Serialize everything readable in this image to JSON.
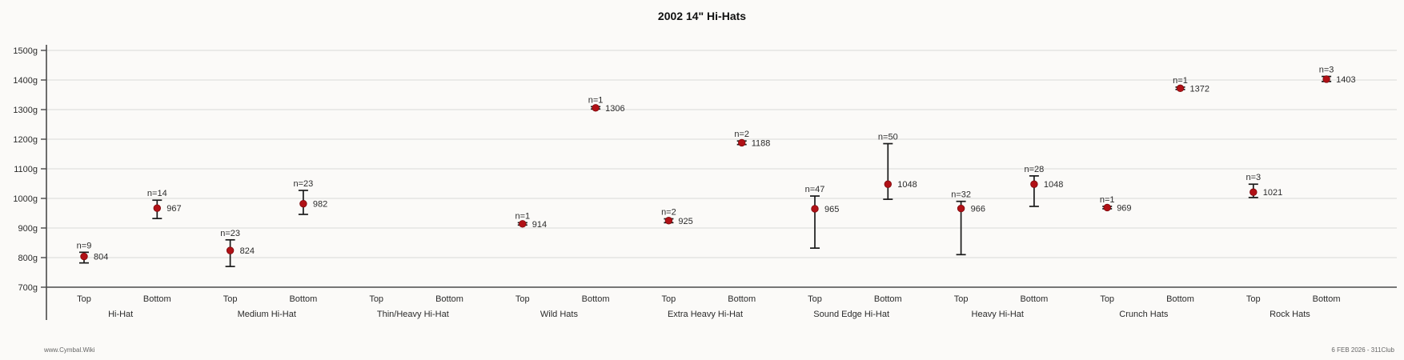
{
  "chart_data": {
    "type": "scatter",
    "title": "2002 14\" Hi-Hats",
    "xlabel": "",
    "ylabel": "",
    "unit": "g",
    "ylim": [
      700,
      1500
    ],
    "grid": true,
    "yticks": [
      {
        "value": 1500,
        "label": "1500g"
      },
      {
        "value": 1400,
        "label": "1400g"
      },
      {
        "value": 1300,
        "label": "1300g"
      },
      {
        "value": 1200,
        "label": "1200g"
      },
      {
        "value": 1100,
        "label": "1100g"
      },
      {
        "value": 1000,
        "label": "1000g"
      },
      {
        "value": 900,
        "label": "900g"
      },
      {
        "value": 800,
        "label": "800g"
      },
      {
        "value": 700,
        "label": "700g"
      }
    ],
    "sublabels": [
      "Top",
      "Bottom"
    ],
    "groups": [
      {
        "name": "Hi-Hat",
        "points": [
          {
            "sub": "Top",
            "n": 9,
            "n_label": "n=9",
            "value": 804,
            "value_label": "804",
            "lo": 782,
            "hi": 818
          },
          {
            "sub": "Bottom",
            "n": 14,
            "n_label": "n=14",
            "value": 967,
            "value_label": "967",
            "lo": 932,
            "hi": 994
          }
        ]
      },
      {
        "name": "Medium Hi-Hat",
        "points": [
          {
            "sub": "Top",
            "n": 23,
            "n_label": "n=23",
            "value": 824,
            "value_label": "824",
            "lo": 770,
            "hi": 860
          },
          {
            "sub": "Bottom",
            "n": 23,
            "n_label": "n=23",
            "value": 982,
            "value_label": "982",
            "lo": 946,
            "hi": 1027
          }
        ]
      },
      {
        "name": "Thin/Heavy Hi-Hat",
        "points": [
          null,
          null
        ]
      },
      {
        "name": "Wild Hats",
        "points": [
          {
            "sub": "Top",
            "n": 1,
            "n_label": "n=1",
            "value": 914,
            "value_label": "914",
            "lo": 910,
            "hi": 918
          },
          {
            "sub": "Bottom",
            "n": 1,
            "n_label": "n=1",
            "value": 1306,
            "value_label": "1306",
            "lo": 1302,
            "hi": 1310
          }
        ]
      },
      {
        "name": "Extra Heavy Hi-Hat",
        "points": [
          {
            "sub": "Top",
            "n": 2,
            "n_label": "n=2",
            "value": 925,
            "value_label": "925",
            "lo": 918,
            "hi": 931
          },
          {
            "sub": "Bottom",
            "n": 2,
            "n_label": "n=2",
            "value": 1188,
            "value_label": "1188",
            "lo": 1182,
            "hi": 1194
          }
        ]
      },
      {
        "name": "Sound Edge Hi-Hat",
        "points": [
          {
            "sub": "Top",
            "n": 47,
            "n_label": "n=47",
            "value": 965,
            "value_label": "965",
            "lo": 832,
            "hi": 1008
          },
          {
            "sub": "Bottom",
            "n": 50,
            "n_label": "n=50",
            "value": 1048,
            "value_label": "1048",
            "lo": 997,
            "hi": 1185
          }
        ]
      },
      {
        "name": "Heavy Hi-Hat",
        "points": [
          {
            "sub": "Top",
            "n": 32,
            "n_label": "n=32",
            "value": 966,
            "value_label": "966",
            "lo": 810,
            "hi": 990
          },
          {
            "sub": "Bottom",
            "n": 28,
            "n_label": "n=28",
            "value": 1048,
            "value_label": "1048",
            "lo": 973,
            "hi": 1076
          }
        ]
      },
      {
        "name": "Crunch Hats",
        "points": [
          {
            "sub": "Top",
            "n": 1,
            "n_label": "n=1",
            "value": 969,
            "value_label": "969",
            "lo": 965,
            "hi": 973
          },
          {
            "sub": "Bottom",
            "n": 1,
            "n_label": "n=1",
            "value": 1372,
            "value_label": "1372",
            "lo": 1368,
            "hi": 1376
          }
        ]
      },
      {
        "name": "Rock Hats",
        "points": [
          {
            "sub": "Top",
            "n": 3,
            "n_label": "n=3",
            "value": 1021,
            "value_label": "1021",
            "lo": 1003,
            "hi": 1048
          },
          {
            "sub": "Bottom",
            "n": 3,
            "n_label": "n=3",
            "value": 1403,
            "value_label": "1403",
            "lo": 1395,
            "hi": 1412
          }
        ]
      }
    ],
    "colors": {
      "marker": "#b11116",
      "whisker": "#1a1a1a",
      "grid": "#d9d9d9",
      "axis": "#4a4a4a",
      "text": "#2b2b2b",
      "background": "#fbfaf8"
    }
  },
  "footer": {
    "left": "www.Cymbal.Wiki",
    "right": "6 FEB 2026 - 311Club"
  }
}
